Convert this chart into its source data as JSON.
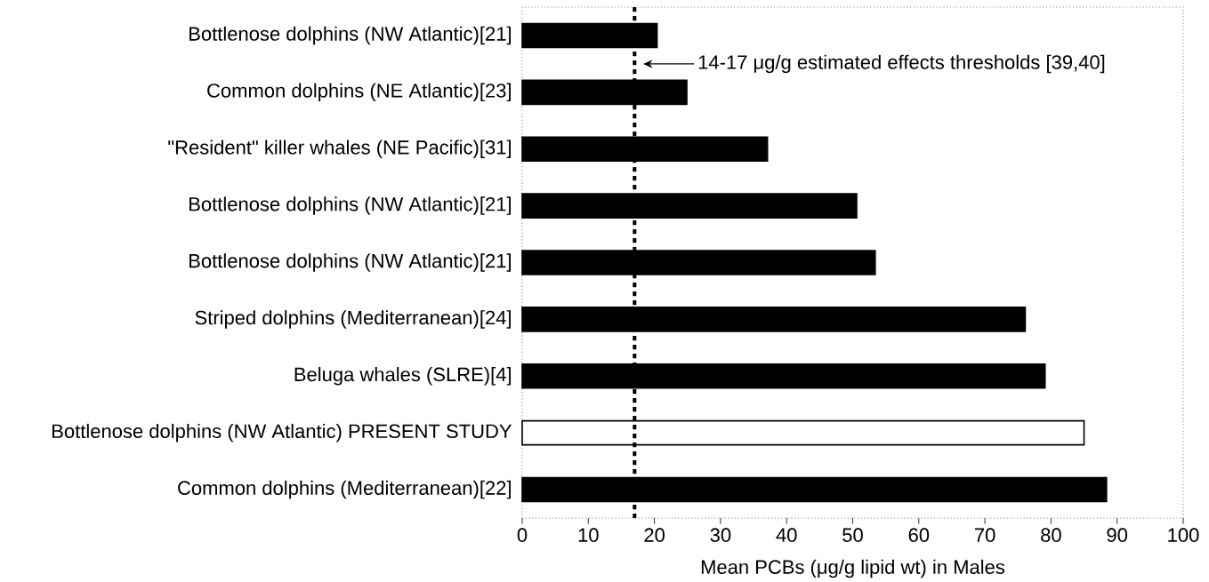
{
  "chart_data": {
    "type": "bar",
    "orientation": "horizontal",
    "xlabel": "Mean PCBs (μg/g lipid wt) in Males",
    "categories": [
      "Bottlenose dolphins (NW Atlantic)[21]",
      "Common dolphins (NE Atlantic)[23]",
      "\"Resident\" killer whales (NE Pacific)[31]",
      "Bottlenose dolphins (NW Atlantic)[21]",
      "Bottlenose dolphins (NW Atlantic)[21]",
      "Striped dolphins (Mediterranean)[24]",
      "Beluga whales (SLRE)[4]",
      "Bottlenose dolphins (NW Atlantic) PRESENT STUDY",
      "Common dolphins (Mediterranean)[22]"
    ],
    "values": [
      20.4,
      24.9,
      37.1,
      50.6,
      53.4,
      76.1,
      79.1,
      85.0,
      88.4
    ],
    "colors": [
      "#000000",
      "#000000",
      "#000000",
      "#000000",
      "#000000",
      "#000000",
      "#000000",
      "#ffffff",
      "#000000"
    ],
    "xlim": [
      0,
      100
    ],
    "xticks": [
      0,
      10,
      20,
      30,
      40,
      50,
      60,
      70,
      80,
      90,
      100
    ],
    "ref_lines": [
      {
        "axis": "x",
        "value": 17,
        "label": "14-17 μg/g estimated effects thresholds [39,40]",
        "line_style": "dotted",
        "color": "#000000"
      }
    ],
    "marker": "none"
  }
}
